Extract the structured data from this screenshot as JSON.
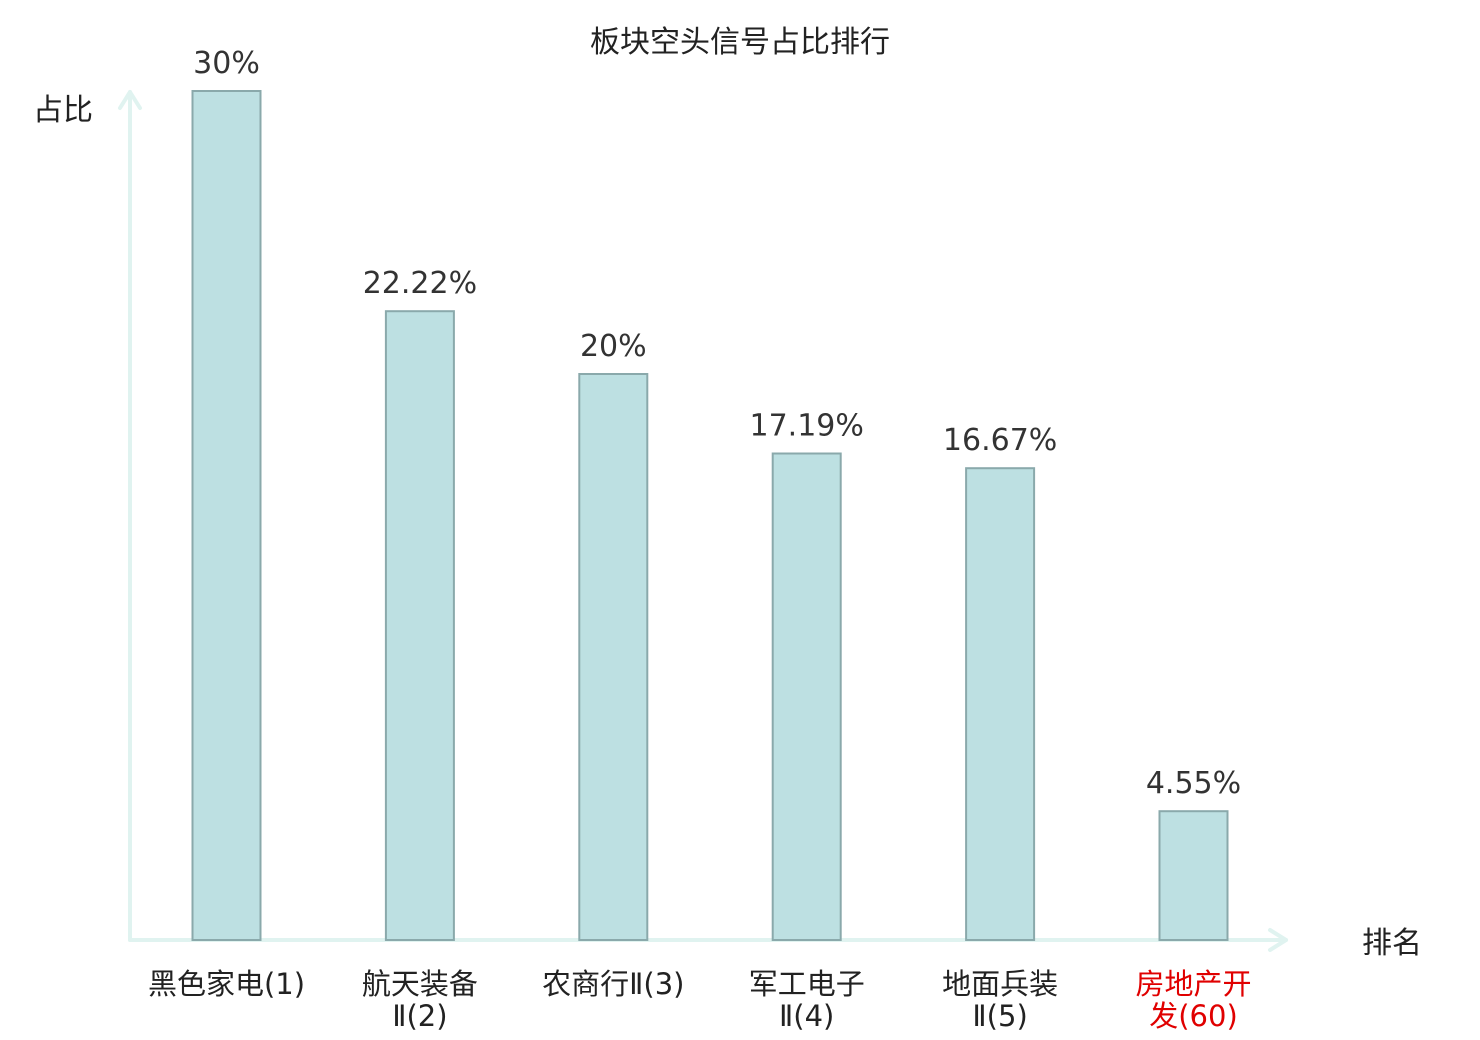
{
  "chart_data": {
    "type": "bar",
    "title": "板块空头信号占比排行",
    "ylabel": "占比",
    "xlabel": "排名",
    "categories": [
      [
        "黑色家电(1)"
      ],
      [
        "航天装备",
        "Ⅱ(2)"
      ],
      [
        "农商行Ⅱ(3)"
      ],
      [
        "军工电子",
        "Ⅱ(4)"
      ],
      [
        "地面兵装",
        "Ⅱ(5)"
      ],
      [
        "房地产开",
        "发(60)"
      ]
    ],
    "values": [
      30,
      22.22,
      20,
      17.19,
      16.67,
      4.55
    ],
    "value_labels": [
      "30%",
      "22.22%",
      "20%",
      "17.19%",
      "16.67%",
      "4.55%"
    ],
    "highlight_index": 5,
    "ylim": [
      0,
      30
    ],
    "grid": false,
    "colors": {
      "bar_fill": "#bde0e2",
      "bar_stroke": "#8aa9ab",
      "axis": "#e0f3f0",
      "highlight_label": "#e00000",
      "text": "#222222"
    }
  }
}
